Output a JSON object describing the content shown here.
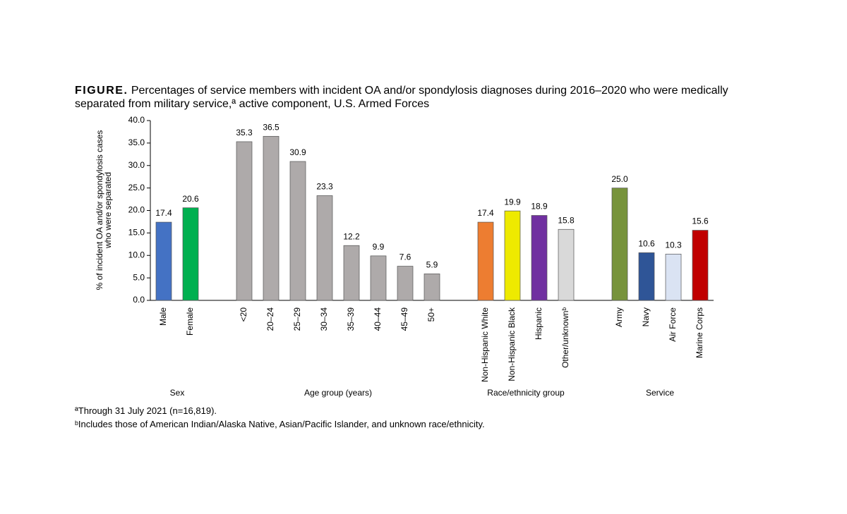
{
  "chart_data": {
    "type": "bar",
    "title_label": "FIGURE.",
    "title": "Percentages of service members with incident OA and/or spondylosis diagnoses during 2016–2020 who were medically separated from military service,ª active component, U.S. Armed Forces",
    "y_label": [
      "% of incident OA and/or spondylosis cases",
      "who were separated"
    ],
    "ylim": [
      0,
      40
    ],
    "yticks": [
      {
        "value": 0,
        "label": "0.0"
      },
      {
        "value": 5,
        "label": "5.0"
      },
      {
        "value": 10,
        "label": "10.0"
      },
      {
        "value": 15,
        "label": "15.0"
      },
      {
        "value": 20,
        "label": "20.0"
      },
      {
        "value": 25,
        "label": "25.0"
      },
      {
        "value": 30,
        "label": "30.0"
      },
      {
        "value": 35,
        "label": "35.0"
      },
      {
        "value": 40,
        "label": "40.0"
      }
    ],
    "groups": [
      {
        "name": "Sex",
        "categories": [
          "Male",
          "Female"
        ],
        "values": [
          17.4,
          20.6
        ],
        "value_labels": [
          "17.4",
          "20.6"
        ],
        "colors": [
          "#4472c4",
          "#00b050"
        ]
      },
      {
        "name": "Age group (years)",
        "categories": [
          "<20",
          "20–24",
          "25–29",
          "30–34",
          "35–39",
          "40–44",
          "45–49",
          "50+"
        ],
        "values": [
          35.3,
          36.5,
          30.9,
          23.3,
          12.2,
          9.9,
          7.6,
          5.9
        ],
        "value_labels": [
          "35.3",
          "36.5",
          "30.9",
          "23.3",
          "12.2",
          "9.9",
          "7.6",
          "5.9"
        ],
        "colors": [
          "#aeaaaa",
          "#aeaaaa",
          "#aeaaaa",
          "#aeaaaa",
          "#aeaaaa",
          "#aeaaaa",
          "#aeaaaa",
          "#aeaaaa"
        ]
      },
      {
        "name": "Race/ethnicity group",
        "categories": [
          "Non-Hispanic White",
          "Non-Hispanic Black",
          "Hispanic",
          "Other/unknownᵇ"
        ],
        "values": [
          17.4,
          19.9,
          18.9,
          15.8
        ],
        "value_labels": [
          "17.4",
          "19.9",
          "18.9",
          "15.8"
        ],
        "colors": [
          "#ed7d31",
          "#eeea00",
          "#7030a0",
          "#d9d9d9"
        ]
      },
      {
        "name": "Service",
        "categories": [
          "Army",
          "Navy",
          "Air Force",
          "Marine Corps"
        ],
        "values": [
          25.0,
          10.6,
          10.3,
          15.6
        ],
        "value_labels": [
          "25.0",
          "10.6",
          "10.3",
          "15.6"
        ],
        "colors": [
          "#77933c",
          "#2f5597",
          "#dae3f3",
          "#c00000"
        ]
      }
    ],
    "footnotes": [
      "ªThrough 31 July 2021 (n=16,819).",
      "ᵇIncludes those of American Indian/Alaska Native, Asian/Pacific Islander, and unknown race/ethnicity."
    ]
  }
}
